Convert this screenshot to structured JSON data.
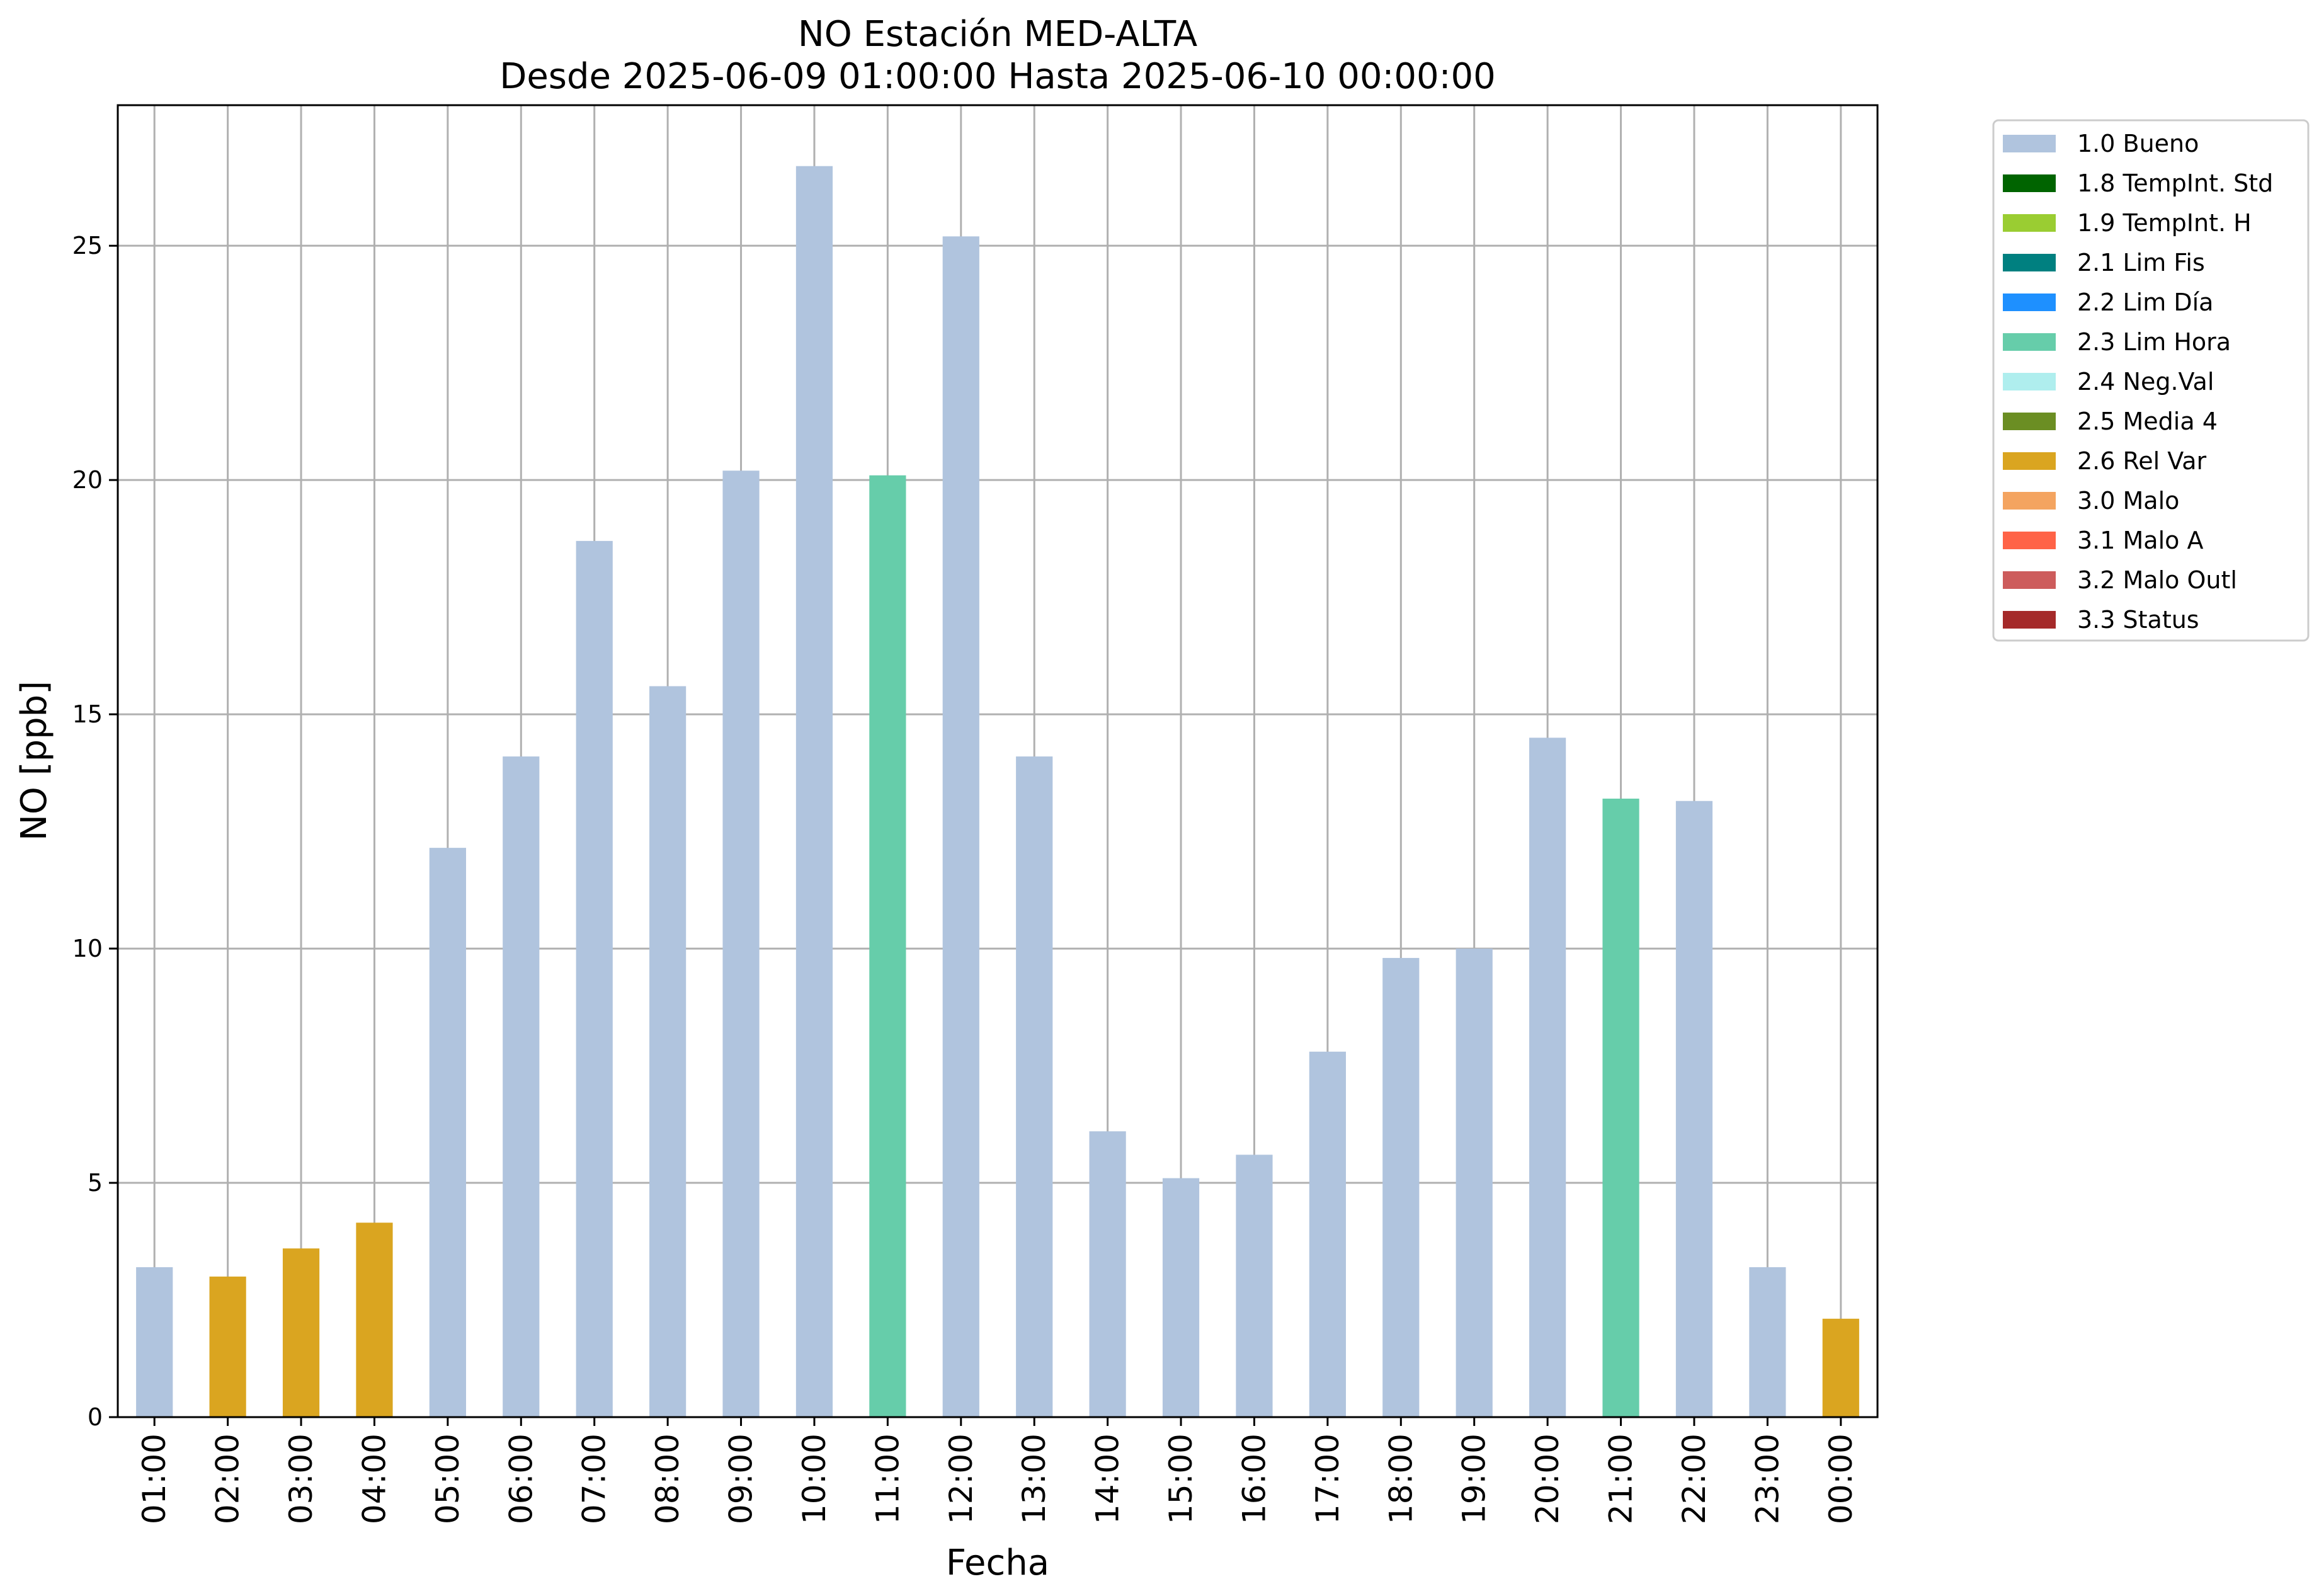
{
  "chart_data": {
    "type": "bar",
    "title": "NO Estación MED-ALTA",
    "subtitle": "Desde 2025-06-09 01:00:00 Hasta 2025-06-10 00:00:00",
    "xlabel": "Fecha",
    "ylabel": "NO [ppb]",
    "ylim": [
      0,
      28
    ],
    "yticks": [
      0,
      5,
      10,
      15,
      20,
      25
    ],
    "grid": true,
    "legend_position": "outside-top-right",
    "categories": [
      "01:00",
      "02:00",
      "03:00",
      "04:00",
      "05:00",
      "06:00",
      "07:00",
      "08:00",
      "09:00",
      "10:00",
      "11:00",
      "12:00",
      "13:00",
      "14:00",
      "15:00",
      "16:00",
      "17:00",
      "18:00",
      "19:00",
      "20:00",
      "21:00",
      "22:00",
      "23:00",
      "00:00"
    ],
    "values": [
      3.2,
      3.0,
      3.6,
      4.15,
      12.15,
      14.1,
      18.7,
      15.6,
      20.2,
      26.7,
      20.1,
      25.2,
      14.1,
      6.1,
      5.1,
      5.6,
      7.8,
      9.8,
      10.0,
      14.5,
      13.2,
      13.15,
      3.2,
      2.1
    ],
    "flags": [
      "1.0",
      "2.6",
      "2.6",
      "2.6",
      "1.0",
      "1.0",
      "1.0",
      "1.0",
      "1.0",
      "1.0",
      "2.3",
      "1.0",
      "1.0",
      "1.0",
      "1.0",
      "1.0",
      "1.0",
      "1.0",
      "1.0",
      "1.0",
      "2.3",
      "1.0",
      "1.0",
      "2.6"
    ],
    "legend": [
      {
        "code": "1.0",
        "label": "1.0 Bueno",
        "color": "#b0c4de"
      },
      {
        "code": "1.8",
        "label": "1.8 TempInt. Std",
        "color": "#006400"
      },
      {
        "code": "1.9",
        "label": "1.9 TempInt. H",
        "color": "#9acd32"
      },
      {
        "code": "2.1",
        "label": "2.1 Lim Fis",
        "color": "#008080"
      },
      {
        "code": "2.2",
        "label": "2.2 Lim Día",
        "color": "#1e90ff"
      },
      {
        "code": "2.3",
        "label": "2.3 Lim Hora",
        "color": "#66cdaa"
      },
      {
        "code": "2.4",
        "label": "2.4 Neg.Val",
        "color": "#afeeee"
      },
      {
        "code": "2.5",
        "label": "2.5 Media 4",
        "color": "#6b8e23"
      },
      {
        "code": "2.6",
        "label": "2.6 Rel Var",
        "color": "#daa520"
      },
      {
        "code": "3.0",
        "label": "3.0 Malo",
        "color": "#f4a460"
      },
      {
        "code": "3.1",
        "label": "3.1 Malo A",
        "color": "#ff6347"
      },
      {
        "code": "3.2",
        "label": "3.2 Malo Outl",
        "color": "#cd5c5c"
      },
      {
        "code": "3.3",
        "label": "3.3 Status",
        "color": "#a52a2a"
      }
    ]
  }
}
